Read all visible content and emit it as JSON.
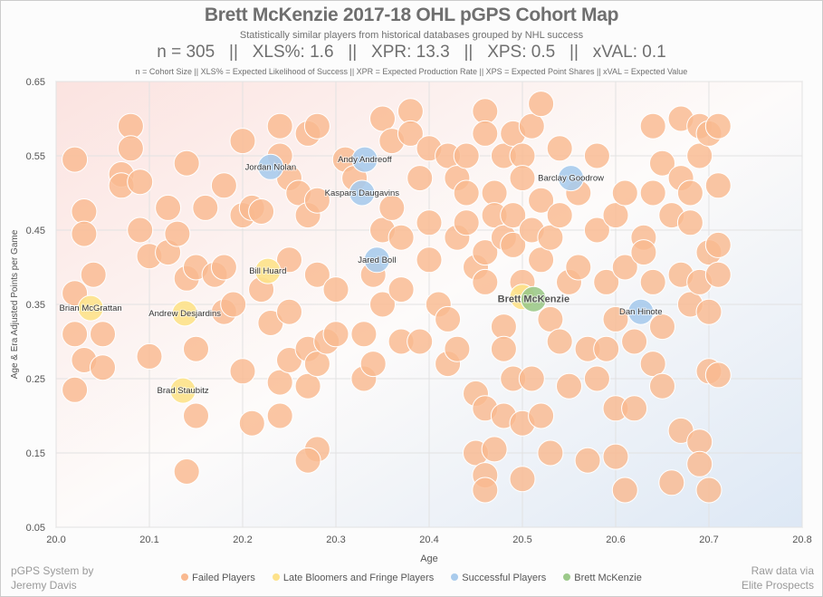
{
  "header": {
    "title": "Brett McKenzie 2017-18 OHL pGPS Cohort Map",
    "subtitle": "Statistically similar players from historical databases grouped by NHL success",
    "stats": "n = 305   ||   XLS%: 1.6   ||   XPR: 13.3   ||   XPS: 0.5   ||   xVAL: 0.1",
    "definitions": "n = Cohort Size || XLS% = Expected Likelihood of Success || XPR = Expected Production Rate || XPS = Expected Point Shares || xVAL = Expected Value"
  },
  "credits": {
    "left_1": "pGPS System by",
    "left_2": "Jeremy Davis",
    "right_1": "Raw data via",
    "right_2": "Elite Prospects"
  },
  "chart_data": {
    "type": "scatter",
    "title": "Brett McKenzie 2017-18 OHL pGPS Cohort Map",
    "xlabel": "Age",
    "ylabel": "Age & Era Adjusted Points per Game",
    "xlim": [
      20.0,
      20.8
    ],
    "ylim": [
      0.05,
      0.65
    ],
    "xticks": [
      "20.0",
      "20.1",
      "20.2",
      "20.3",
      "20.4",
      "20.5",
      "20.6",
      "20.7",
      "20.8"
    ],
    "yticks": [
      "0.05",
      "0.15",
      "0.25",
      "0.35",
      "0.45",
      "0.55",
      "0.65"
    ],
    "grid": true,
    "legend_position": "bottom",
    "colors": {
      "failed": "#f9b990",
      "fringe": "#fde28a",
      "success": "#a9cbec",
      "subject": "#9cc98a"
    },
    "series": [
      {
        "name": "Failed Players",
        "key": "failed",
        "points": [
          [
            20.02,
            0.545
          ],
          [
            20.02,
            0.365
          ],
          [
            20.02,
            0.31
          ],
          [
            20.02,
            0.235
          ],
          [
            20.03,
            0.475
          ],
          [
            20.03,
            0.445
          ],
          [
            20.04,
            0.39
          ],
          [
            20.03,
            0.275
          ],
          [
            20.05,
            0.31
          ],
          [
            20.05,
            0.265
          ],
          [
            20.08,
            0.59
          ],
          [
            20.08,
            0.56
          ],
          [
            20.07,
            0.525
          ],
          [
            20.07,
            0.51
          ],
          [
            20.09,
            0.515
          ],
          [
            20.09,
            0.45
          ],
          [
            20.1,
            0.415
          ],
          [
            20.1,
            0.28
          ],
          [
            20.12,
            0.48
          ],
          [
            20.12,
            0.42
          ],
          [
            20.13,
            0.445
          ],
          [
            20.14,
            0.54
          ],
          [
            20.14,
            0.385
          ],
          [
            20.15,
            0.4
          ],
          [
            20.15,
            0.29
          ],
          [
            20.15,
            0.2
          ],
          [
            20.14,
            0.125
          ],
          [
            20.16,
            0.48
          ],
          [
            20.17,
            0.39
          ],
          [
            20.18,
            0.51
          ],
          [
            20.18,
            0.4
          ],
          [
            20.18,
            0.34
          ],
          [
            20.19,
            0.35
          ],
          [
            20.2,
            0.57
          ],
          [
            20.2,
            0.47
          ],
          [
            20.21,
            0.48
          ],
          [
            20.2,
            0.26
          ],
          [
            20.21,
            0.19
          ],
          [
            20.22,
            0.475
          ],
          [
            20.22,
            0.37
          ],
          [
            20.23,
            0.325
          ],
          [
            20.24,
            0.59
          ],
          [
            20.24,
            0.55
          ],
          [
            20.25,
            0.52
          ],
          [
            20.25,
            0.41
          ],
          [
            20.25,
            0.34
          ],
          [
            20.24,
            0.245
          ],
          [
            20.24,
            0.2
          ],
          [
            20.25,
            0.275
          ],
          [
            20.26,
            0.5
          ],
          [
            20.27,
            0.58
          ],
          [
            20.28,
            0.59
          ],
          [
            20.27,
            0.47
          ],
          [
            20.28,
            0.49
          ],
          [
            20.28,
            0.39
          ],
          [
            20.27,
            0.29
          ],
          [
            20.27,
            0.24
          ],
          [
            20.28,
            0.27
          ],
          [
            20.28,
            0.155
          ],
          [
            20.27,
            0.14
          ],
          [
            20.29,
            0.3
          ],
          [
            20.3,
            0.37
          ],
          [
            20.3,
            0.31
          ],
          [
            20.31,
            0.545
          ],
          [
            20.32,
            0.52
          ],
          [
            20.33,
            0.25
          ],
          [
            20.33,
            0.31
          ],
          [
            20.34,
            0.27
          ],
          [
            20.34,
            0.39
          ],
          [
            20.35,
            0.6
          ],
          [
            20.35,
            0.45
          ],
          [
            20.35,
            0.35
          ],
          [
            20.36,
            0.57
          ],
          [
            20.36,
            0.48
          ],
          [
            20.37,
            0.44
          ],
          [
            20.37,
            0.37
          ],
          [
            20.37,
            0.3
          ],
          [
            20.38,
            0.61
          ],
          [
            20.38,
            0.58
          ],
          [
            20.39,
            0.52
          ],
          [
            20.39,
            0.3
          ],
          [
            20.4,
            0.56
          ],
          [
            20.4,
            0.46
          ],
          [
            20.4,
            0.41
          ],
          [
            20.41,
            0.35
          ],
          [
            20.42,
            0.55
          ],
          [
            20.42,
            0.33
          ],
          [
            20.42,
            0.27
          ],
          [
            20.43,
            0.52
          ],
          [
            20.43,
            0.44
          ],
          [
            20.43,
            0.29
          ],
          [
            20.44,
            0.55
          ],
          [
            20.44,
            0.5
          ],
          [
            20.44,
            0.46
          ],
          [
            20.45,
            0.4
          ],
          [
            20.45,
            0.23
          ],
          [
            20.45,
            0.15
          ],
          [
            20.46,
            0.61
          ],
          [
            20.46,
            0.58
          ],
          [
            20.46,
            0.42
          ],
          [
            20.46,
            0.38
          ],
          [
            20.46,
            0.21
          ],
          [
            20.46,
            0.12
          ],
          [
            20.46,
            0.1
          ],
          [
            20.47,
            0.5
          ],
          [
            20.47,
            0.47
          ],
          [
            20.47,
            0.155
          ],
          [
            20.48,
            0.55
          ],
          [
            20.48,
            0.44
          ],
          [
            20.48,
            0.32
          ],
          [
            20.48,
            0.29
          ],
          [
            20.48,
            0.2
          ],
          [
            20.49,
            0.58
          ],
          [
            20.49,
            0.47
          ],
          [
            20.49,
            0.43
          ],
          [
            20.49,
            0.25
          ],
          [
            20.5,
            0.55
          ],
          [
            20.5,
            0.52
          ],
          [
            20.5,
            0.38
          ],
          [
            20.5,
            0.19
          ],
          [
            20.5,
            0.115
          ],
          [
            20.51,
            0.59
          ],
          [
            20.51,
            0.45
          ],
          [
            20.51,
            0.25
          ],
          [
            20.52,
            0.62
          ],
          [
            20.52,
            0.49
          ],
          [
            20.52,
            0.41
          ],
          [
            20.52,
            0.2
          ],
          [
            20.53,
            0.44
          ],
          [
            20.53,
            0.33
          ],
          [
            20.53,
            0.15
          ],
          [
            20.54,
            0.56
          ],
          [
            20.54,
            0.47
          ],
          [
            20.54,
            0.3
          ],
          [
            20.55,
            0.38
          ],
          [
            20.55,
            0.24
          ],
          [
            20.56,
            0.4
          ],
          [
            20.56,
            0.5
          ],
          [
            20.57,
            0.29
          ],
          [
            20.57,
            0.14
          ],
          [
            20.58,
            0.55
          ],
          [
            20.58,
            0.45
          ],
          [
            20.58,
            0.25
          ],
          [
            20.59,
            0.38
          ],
          [
            20.59,
            0.29
          ],
          [
            20.6,
            0.47
          ],
          [
            20.6,
            0.33
          ],
          [
            20.6,
            0.21
          ],
          [
            20.6,
            0.145
          ],
          [
            20.61,
            0.5
          ],
          [
            20.61,
            0.4
          ],
          [
            20.61,
            0.1
          ],
          [
            20.62,
            0.3
          ],
          [
            20.62,
            0.21
          ],
          [
            20.63,
            0.44
          ],
          [
            20.63,
            0.42
          ],
          [
            20.64,
            0.59
          ],
          [
            20.64,
            0.5
          ],
          [
            20.64,
            0.38
          ],
          [
            20.64,
            0.27
          ],
          [
            20.65,
            0.54
          ],
          [
            20.65,
            0.24
          ],
          [
            20.65,
            0.32
          ],
          [
            20.66,
            0.47
          ],
          [
            20.66,
            0.11
          ],
          [
            20.67,
            0.6
          ],
          [
            20.67,
            0.52
          ],
          [
            20.67,
            0.39
          ],
          [
            20.67,
            0.18
          ],
          [
            20.68,
            0.5
          ],
          [
            20.68,
            0.46
          ],
          [
            20.68,
            0.35
          ],
          [
            20.69,
            0.59
          ],
          [
            20.69,
            0.55
          ],
          [
            20.69,
            0.38
          ],
          [
            20.69,
            0.165
          ],
          [
            20.69,
            0.135
          ],
          [
            20.7,
            0.58
          ],
          [
            20.7,
            0.42
          ],
          [
            20.7,
            0.34
          ],
          [
            20.7,
            0.26
          ],
          [
            20.7,
            0.1
          ],
          [
            20.71,
            0.59
          ],
          [
            20.71,
            0.51
          ],
          [
            20.71,
            0.43
          ],
          [
            20.71,
            0.39
          ],
          [
            20.71,
            0.255
          ]
        ]
      },
      {
        "name": "Late Bloomers and Fringe Players",
        "key": "fringe",
        "points": [
          {
            "label": "Bill Huard",
            "x": 20.227,
            "y": 0.395
          },
          {
            "label": "Brian McGrattan",
            "x": 20.037,
            "y": 0.345
          },
          {
            "label": "Andrew Desjardins",
            "x": 20.138,
            "y": 0.338
          },
          {
            "label": "Brad Staubitz",
            "x": 20.136,
            "y": 0.234
          },
          {
            "label": "",
            "x": 20.5,
            "y": 0.36
          }
        ]
      },
      {
        "name": "Successful Players",
        "key": "success",
        "points": [
          {
            "label": "Jordan Nolan",
            "x": 20.23,
            "y": 0.535
          },
          {
            "label": "Andy Andreoff",
            "x": 20.331,
            "y": 0.545
          },
          {
            "label": "Kaspars Daugavins",
            "x": 20.328,
            "y": 0.5
          },
          {
            "label": "Barclay Goodrow",
            "x": 20.552,
            "y": 0.52
          },
          {
            "label": "Jared Boll",
            "x": 20.344,
            "y": 0.41
          },
          {
            "label": "Dan Hinote",
            "x": 20.627,
            "y": 0.34
          }
        ]
      },
      {
        "name": "Brett McKenzie",
        "key": "subject",
        "points": [
          {
            "label": "Brett McKenzie",
            "x": 20.512,
            "y": 0.357
          }
        ]
      }
    ]
  }
}
